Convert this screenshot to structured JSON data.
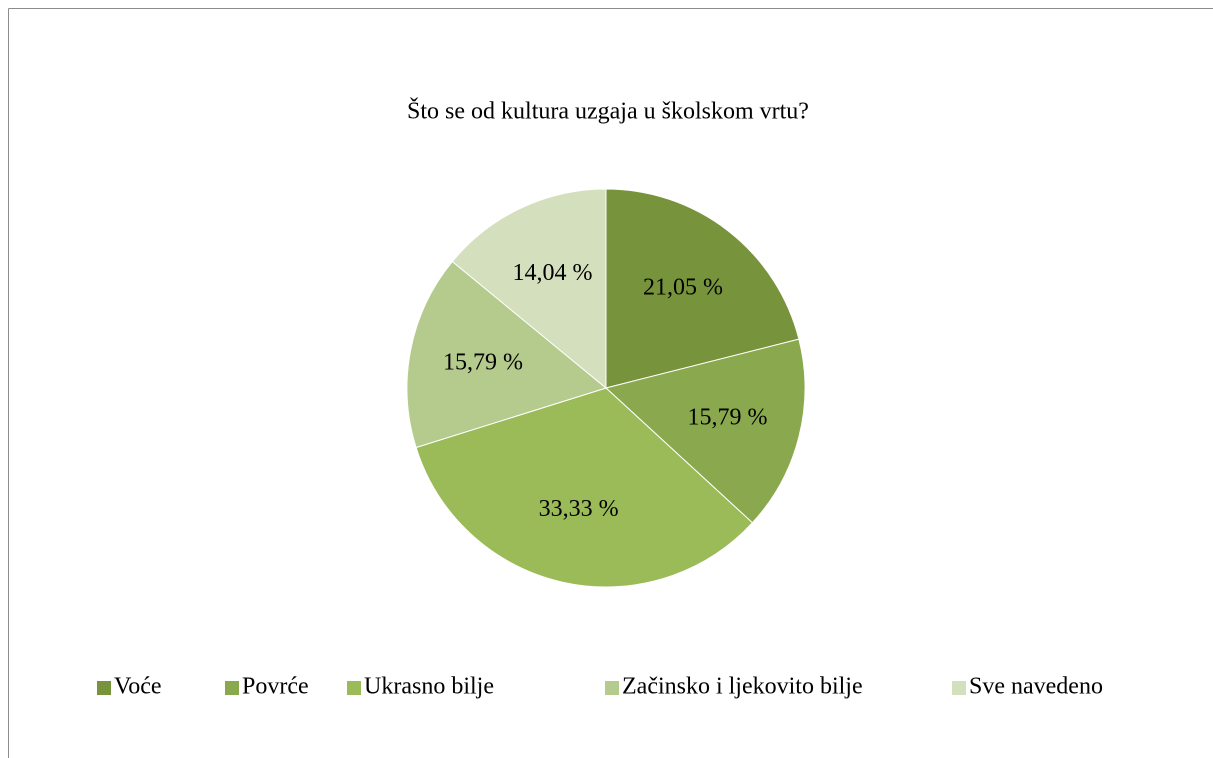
{
  "chart_data": {
    "type": "pie",
    "title": "Što se od kultura uzgaja u školskom vrtu?",
    "categories": [
      "Voće",
      "Povrće",
      "Ukrasno bilje",
      "Začinsko i ljekovito bilje",
      "Sve navedeno"
    ],
    "values": [
      21.05,
      15.79,
      33.33,
      15.79,
      14.04
    ],
    "value_labels": [
      "21,05 %",
      "15,79 %",
      "33,33 %",
      "15,79 %",
      "14,04 %"
    ],
    "colors": [
      "#77933c",
      "#8aa94f",
      "#9bbb59",
      "#b5ca8d",
      "#d3dfbd"
    ],
    "legend": "bottom"
  }
}
